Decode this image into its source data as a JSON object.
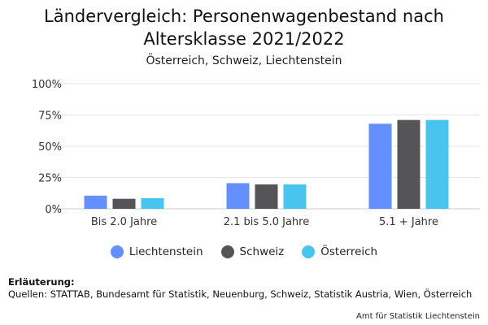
{
  "title": "Ländervergleich: Personenwagenbestand nach\nAltersklasse 2021/2022",
  "subtitle": "Österreich, Schweiz, Liechtenstein",
  "note": {
    "heading": "Erläuterung:",
    "source": "Quellen: STATTAB, Bundesamt für Statistik, Neuenburg, Schweiz, Statistik Austria, Wien, Österreich"
  },
  "credit": "Amt für Statistik Liechtenstein",
  "colors": {
    "Liechtenstein": "#648fff",
    "Schweiz": "#555558",
    "Österreich": "#47c5ef"
  },
  "chart_data": {
    "type": "bar",
    "title": "Ländervergleich: Personenwagenbestand nach Altersklasse 2021/2022",
    "subtitle": "Österreich, Schweiz, Liechtenstein",
    "categories": [
      "Bis 2.0 Jahre",
      "2.1 bis 5.0 Jahre",
      "5.1 + Jahre"
    ],
    "series": [
      {
        "name": "Liechtenstein",
        "values": [
          10.5,
          20.5,
          68.0
        ]
      },
      {
        "name": "Schweiz",
        "values": [
          8.0,
          19.5,
          71.0
        ]
      },
      {
        "name": "Österreich",
        "values": [
          8.5,
          19.5,
          71.0
        ]
      }
    ],
    "yticks": [
      "0%",
      "25%",
      "50%",
      "75%",
      "100%"
    ],
    "ylim": [
      0,
      100
    ],
    "grid": true,
    "legend_position": "bottom"
  }
}
